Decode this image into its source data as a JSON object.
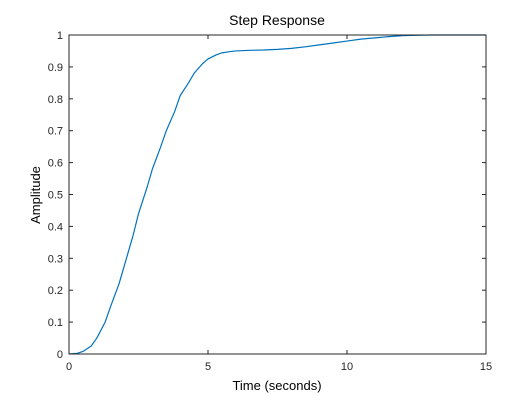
{
  "colors": {
    "series": "#0072bd",
    "axis": "#262626",
    "reference": "#000000"
  },
  "chart_data": {
    "type": "line",
    "title": "Step Response",
    "xlabel": "Time (seconds)",
    "ylabel": "Amplitude",
    "xlim": [
      0,
      15
    ],
    "ylim": [
      0,
      1
    ],
    "x_ticks": [
      0,
      5,
      10,
      15
    ],
    "y_ticks": [
      0,
      0.1,
      0.2,
      0.3,
      0.4,
      0.5,
      0.6,
      0.7,
      0.8,
      0.9,
      1
    ],
    "grid": false,
    "reference_line": {
      "y": 1,
      "style": "dotted"
    },
    "series": [
      {
        "x": [
          0,
          0.3,
          0.5,
          0.8,
          1.0,
          1.3,
          1.5,
          1.8,
          2.0,
          2.3,
          2.5,
          2.8,
          3.0,
          3.3,
          3.5,
          3.8,
          4.0,
          4.3,
          4.5,
          4.8,
          5.0,
          5.3,
          5.5,
          5.8,
          6.0,
          6.5,
          7.0,
          7.5,
          8.0,
          8.5,
          9.0,
          9.5,
          10.0,
          10.5,
          11.0,
          11.5,
          12.0,
          12.5,
          13.0,
          14.0,
          15.0
        ],
        "y": [
          0,
          0.002,
          0.008,
          0.025,
          0.05,
          0.1,
          0.15,
          0.22,
          0.28,
          0.37,
          0.44,
          0.52,
          0.58,
          0.65,
          0.7,
          0.76,
          0.81,
          0.85,
          0.88,
          0.91,
          0.925,
          0.938,
          0.944,
          0.948,
          0.95,
          0.952,
          0.953,
          0.955,
          0.958,
          0.963,
          0.969,
          0.975,
          0.981,
          0.987,
          0.991,
          0.995,
          0.998,
          0.999,
          1.0,
          1.0,
          1.0
        ]
      }
    ]
  }
}
